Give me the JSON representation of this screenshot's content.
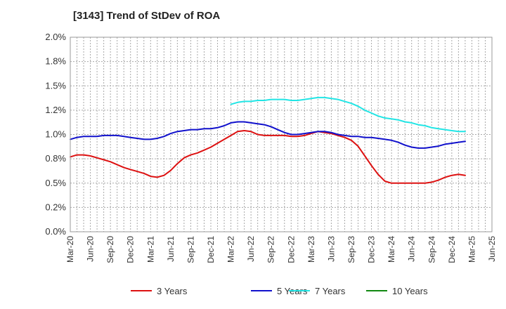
{
  "chart_data": {
    "type": "line",
    "title": "[3143]  Trend of StDev of ROA",
    "xlabel": "",
    "ylabel": "",
    "ylim": [
      0,
      2.0
    ],
    "y_ticks": [
      0,
      0.25,
      0.5,
      0.75,
      1.0,
      1.25,
      1.5,
      1.75,
      2.0
    ],
    "y_tick_labels": [
      "0.0%",
      "0.2%",
      "0.5%",
      "0.8%",
      "1.0%",
      "1.2%",
      "1.5%",
      "1.8%",
      "2.0%"
    ],
    "x_tick_labels": [
      "Mar-20",
      "Jun-20",
      "Sep-20",
      "Dec-20",
      "Mar-21",
      "Jun-21",
      "Sep-21",
      "Dec-21",
      "Mar-22",
      "Jun-22",
      "Sep-22",
      "Dec-22",
      "Mar-23",
      "Jun-23",
      "Sep-23",
      "Dec-23",
      "Mar-24",
      "Jun-24",
      "Sep-24",
      "Dec-24",
      "Mar-25",
      "Jun-25"
    ],
    "grid": true,
    "legend_position": "bottom",
    "series": [
      {
        "name": "3 Years",
        "color": "#dd1111",
        "values": [
          [
            0,
            0.77
          ],
          [
            0.33,
            0.79
          ],
          [
            0.67,
            0.79
          ],
          [
            1,
            0.78
          ],
          [
            1.33,
            0.76
          ],
          [
            1.67,
            0.74
          ],
          [
            2,
            0.72
          ],
          [
            2.33,
            0.69
          ],
          [
            2.67,
            0.66
          ],
          [
            3,
            0.64
          ],
          [
            3.33,
            0.62
          ],
          [
            3.67,
            0.6
          ],
          [
            4,
            0.57
          ],
          [
            4.33,
            0.56
          ],
          [
            4.67,
            0.58
          ],
          [
            5,
            0.63
          ],
          [
            5.33,
            0.7
          ],
          [
            5.67,
            0.76
          ],
          [
            6,
            0.79
          ],
          [
            6.33,
            0.81
          ],
          [
            6.67,
            0.84
          ],
          [
            7,
            0.87
          ],
          [
            7.33,
            0.91
          ],
          [
            7.67,
            0.95
          ],
          [
            8,
            0.99
          ],
          [
            8.33,
            1.03
          ],
          [
            8.67,
            1.04
          ],
          [
            9,
            1.03
          ],
          [
            9.33,
            1.0
          ],
          [
            9.67,
            0.99
          ],
          [
            10,
            0.99
          ],
          [
            10.33,
            0.99
          ],
          [
            10.67,
            0.99
          ],
          [
            11,
            0.98
          ],
          [
            11.33,
            0.98
          ],
          [
            11.67,
            0.99
          ],
          [
            12,
            1.01
          ],
          [
            12.33,
            1.03
          ],
          [
            12.67,
            1.02
          ],
          [
            13,
            1.01
          ],
          [
            13.33,
            0.99
          ],
          [
            13.67,
            0.97
          ],
          [
            14,
            0.94
          ],
          [
            14.33,
            0.88
          ],
          [
            14.67,
            0.78
          ],
          [
            15,
            0.68
          ],
          [
            15.33,
            0.59
          ],
          [
            15.67,
            0.52
          ],
          [
            16,
            0.5
          ],
          [
            16.33,
            0.5
          ],
          [
            16.67,
            0.5
          ],
          [
            17,
            0.5
          ],
          [
            17.33,
            0.5
          ],
          [
            17.67,
            0.5
          ],
          [
            18,
            0.51
          ],
          [
            18.33,
            0.53
          ],
          [
            18.67,
            0.56
          ],
          [
            19,
            0.58
          ],
          [
            19.33,
            0.59
          ],
          [
            19.67,
            0.58
          ]
        ]
      },
      {
        "name": "5 Years",
        "color": "#1111cc",
        "values": [
          [
            0,
            0.95
          ],
          [
            0.33,
            0.97
          ],
          [
            0.67,
            0.98
          ],
          [
            1,
            0.98
          ],
          [
            1.33,
            0.98
          ],
          [
            1.67,
            0.99
          ],
          [
            2,
            0.99
          ],
          [
            2.33,
            0.99
          ],
          [
            2.67,
            0.98
          ],
          [
            3,
            0.97
          ],
          [
            3.33,
            0.96
          ],
          [
            3.67,
            0.95
          ],
          [
            4,
            0.95
          ],
          [
            4.33,
            0.96
          ],
          [
            4.67,
            0.98
          ],
          [
            5,
            1.01
          ],
          [
            5.33,
            1.03
          ],
          [
            5.67,
            1.04
          ],
          [
            6,
            1.05
          ],
          [
            6.33,
            1.05
          ],
          [
            6.67,
            1.06
          ],
          [
            7,
            1.06
          ],
          [
            7.33,
            1.07
          ],
          [
            7.67,
            1.09
          ],
          [
            8,
            1.12
          ],
          [
            8.33,
            1.13
          ],
          [
            8.67,
            1.13
          ],
          [
            9,
            1.12
          ],
          [
            9.33,
            1.11
          ],
          [
            9.67,
            1.1
          ],
          [
            10,
            1.08
          ],
          [
            10.33,
            1.05
          ],
          [
            10.67,
            1.02
          ],
          [
            11,
            1.0
          ],
          [
            11.33,
            1.0
          ],
          [
            11.67,
            1.01
          ],
          [
            12,
            1.02
          ],
          [
            12.33,
            1.03
          ],
          [
            12.67,
            1.03
          ],
          [
            13,
            1.02
          ],
          [
            13.33,
            1.0
          ],
          [
            13.67,
            0.99
          ],
          [
            14,
            0.98
          ],
          [
            14.33,
            0.98
          ],
          [
            14.67,
            0.97
          ],
          [
            15,
            0.97
          ],
          [
            15.33,
            0.96
          ],
          [
            15.67,
            0.95
          ],
          [
            16,
            0.94
          ],
          [
            16.33,
            0.92
          ],
          [
            16.67,
            0.89
          ],
          [
            17,
            0.87
          ],
          [
            17.33,
            0.86
          ],
          [
            17.67,
            0.86
          ],
          [
            18,
            0.87
          ],
          [
            18.33,
            0.88
          ],
          [
            18.67,
            0.9
          ],
          [
            19,
            0.91
          ],
          [
            19.33,
            0.92
          ],
          [
            19.67,
            0.93
          ]
        ]
      },
      {
        "name": "7 Years",
        "color": "#22e5e5",
        "values": [
          [
            8,
            1.31
          ],
          [
            8.33,
            1.33
          ],
          [
            8.67,
            1.34
          ],
          [
            9,
            1.34
          ],
          [
            9.33,
            1.35
          ],
          [
            9.67,
            1.35
          ],
          [
            10,
            1.36
          ],
          [
            10.33,
            1.36
          ],
          [
            10.67,
            1.36
          ],
          [
            11,
            1.35
          ],
          [
            11.33,
            1.35
          ],
          [
            11.67,
            1.36
          ],
          [
            12,
            1.37
          ],
          [
            12.33,
            1.38
          ],
          [
            12.67,
            1.38
          ],
          [
            13,
            1.37
          ],
          [
            13.33,
            1.36
          ],
          [
            13.67,
            1.34
          ],
          [
            14,
            1.32
          ],
          [
            14.33,
            1.29
          ],
          [
            14.67,
            1.25
          ],
          [
            15,
            1.22
          ],
          [
            15.33,
            1.19
          ],
          [
            15.67,
            1.17
          ],
          [
            16,
            1.16
          ],
          [
            16.33,
            1.15
          ],
          [
            16.67,
            1.13
          ],
          [
            17,
            1.12
          ],
          [
            17.33,
            1.1
          ],
          [
            17.67,
            1.09
          ],
          [
            18,
            1.07
          ],
          [
            18.33,
            1.06
          ],
          [
            18.67,
            1.05
          ],
          [
            19,
            1.04
          ],
          [
            19.33,
            1.03
          ],
          [
            19.67,
            1.03
          ]
        ]
      },
      {
        "name": "10 Years",
        "color": "#118811",
        "values": []
      }
    ]
  }
}
